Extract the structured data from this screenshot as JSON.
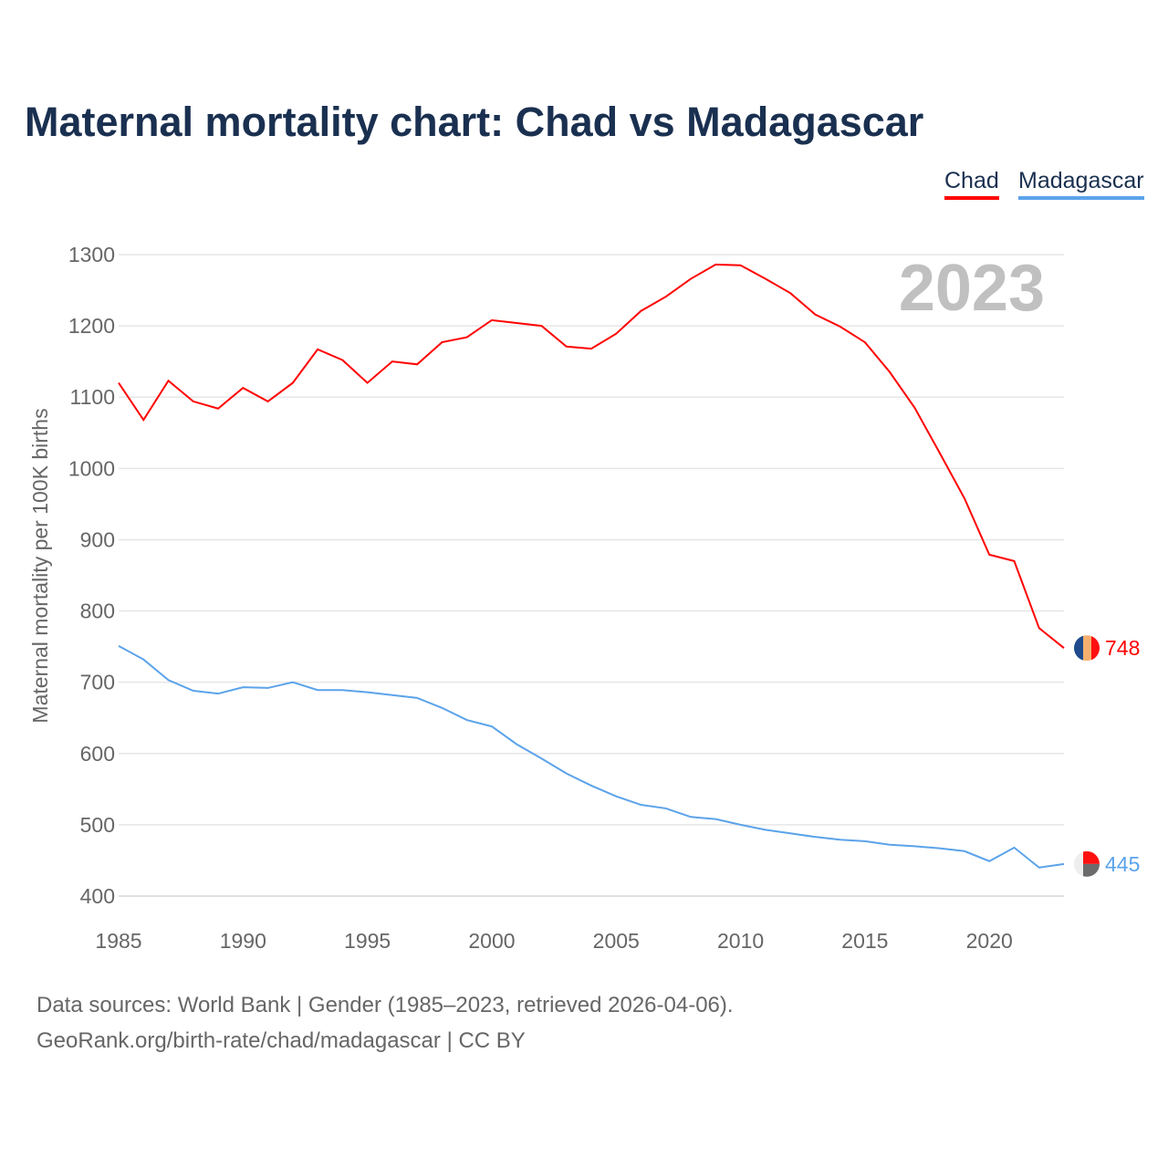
{
  "chart_data": {
    "type": "line",
    "title": "Maternal mortality chart: Chad vs Madagascar",
    "xlabel": "",
    "ylabel": "Maternal mortality per 100K births",
    "ylim": [
      400,
      1300
    ],
    "xlim": [
      1985,
      2023
    ],
    "yticks": [
      400,
      500,
      600,
      700,
      800,
      900,
      1000,
      1100,
      1200,
      1300
    ],
    "xticks": [
      1985,
      1990,
      1995,
      2000,
      2005,
      2010,
      2015,
      2020
    ],
    "grid": true,
    "legend_placement": "top-right",
    "year_label": "2023",
    "x": [
      1985,
      1986,
      1987,
      1988,
      1989,
      1990,
      1991,
      1992,
      1993,
      1994,
      1995,
      1996,
      1997,
      1998,
      1999,
      2000,
      2001,
      2002,
      2003,
      2004,
      2005,
      2006,
      2007,
      2008,
      2009,
      2010,
      2011,
      2012,
      2013,
      2014,
      2015,
      2016,
      2017,
      2018,
      2019,
      2020,
      2021,
      2022,
      2023
    ],
    "series": [
      {
        "name": "Chad",
        "color": "#ff0000",
        "end_label": "748",
        "values": [
          1120,
          1068,
          1123,
          1094,
          1084,
          1113,
          1094,
          1120,
          1167,
          1152,
          1120,
          1150,
          1146,
          1177,
          1184,
          1208,
          1204,
          1200,
          1171,
          1168,
          1189,
          1221,
          1241,
          1266,
          1286,
          1285,
          1266,
          1246,
          1216,
          1199,
          1177,
          1135,
          1085,
          1022,
          958,
          879,
          870,
          776,
          748
        ]
      },
      {
        "name": "Madagascar",
        "color": "#5ba3ea",
        "end_label": "445",
        "values": [
          751,
          732,
          703,
          688,
          684,
          693,
          692,
          700,
          689,
          689,
          686,
          682,
          678,
          664,
          647,
          638,
          613,
          593,
          572,
          555,
          540,
          528,
          523,
          511,
          508,
          500,
          493,
          488,
          483,
          479,
          477,
          472,
          470,
          467,
          463,
          449,
          468,
          440,
          445
        ]
      }
    ]
  },
  "footer": {
    "line1": "Data sources: World Bank | Gender (1985–2023, retrieved 2026-04-06).",
    "line2": "GeoRank.org/birth-rate/chad/madagascar | CC BY"
  }
}
